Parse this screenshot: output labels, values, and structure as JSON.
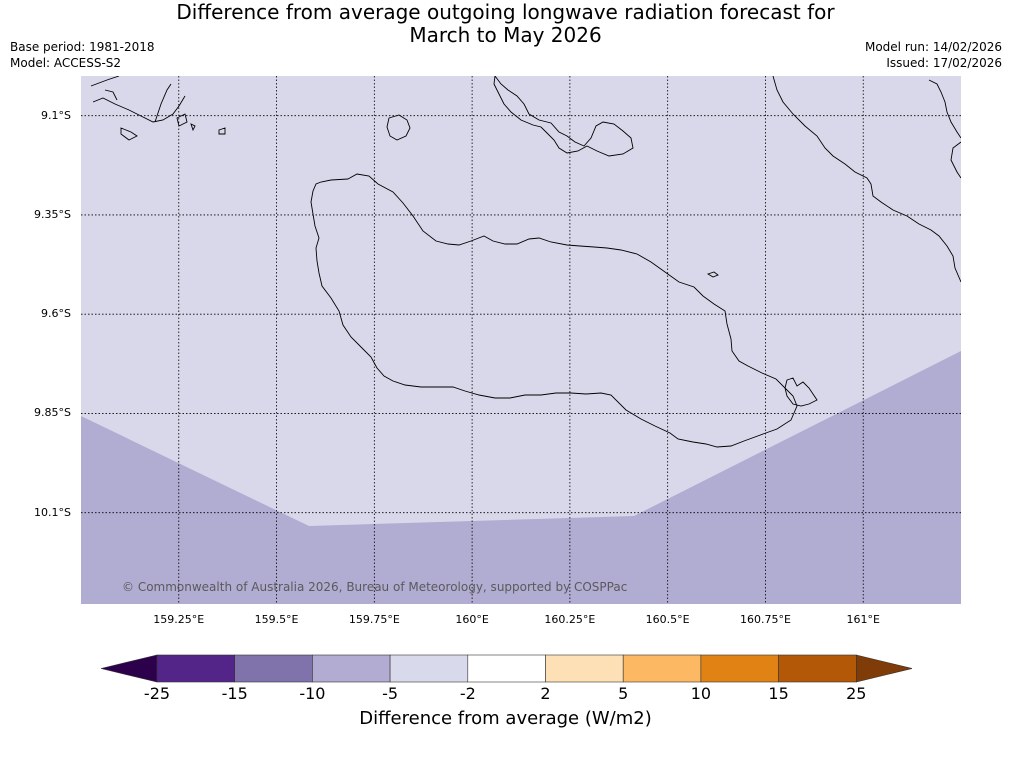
{
  "header": {
    "title_line1": "Difference from average outgoing longwave radiation forecast for",
    "title_line2": "March to May 2026",
    "base_period": "Base period: 1981-2018",
    "model": "Model: ACCESS-S2",
    "model_run": "Model run: 14/02/2026",
    "issued": "Issued: 17/02/2026"
  },
  "map": {
    "copyright": "© Commonwealth of Australia 2026, Bureau of Meteorology, supported by COSPPac",
    "lat_range": [
      -10.33,
      -9.0
    ],
    "lon_range": [
      159.0,
      161.25
    ],
    "lat_ticks": [
      {
        "value": -9.1,
        "label": "9.1°S"
      },
      {
        "value": -9.35,
        "label": "9.35°S"
      },
      {
        "value": -9.6,
        "label": "9.6°S"
      },
      {
        "value": -9.85,
        "label": "9.85°S"
      },
      {
        "value": -10.1,
        "label": "10.1°S"
      }
    ],
    "lon_ticks": [
      {
        "value": 159.25,
        "label": "159.25°E"
      },
      {
        "value": 159.5,
        "label": "159.5°E"
      },
      {
        "value": 159.75,
        "label": "159.75°E"
      },
      {
        "value": 160.0,
        "label": "160°E"
      },
      {
        "value": 160.25,
        "label": "160.25°E"
      },
      {
        "value": 160.5,
        "label": "160.5°E"
      },
      {
        "value": 160.75,
        "label": "160.75°E"
      },
      {
        "value": 161.0,
        "label": "161°E"
      }
    ],
    "fill_colors": {
      "light_region": "#d8d8ea",
      "dark_region": "#b1acd2"
    }
  },
  "colorbar": {
    "title": "Difference from average (W/m2)",
    "bins": [
      {
        "from": -25,
        "to": -15,
        "color": "#542589"
      },
      {
        "from": -15,
        "to": -10,
        "color": "#8073ac"
      },
      {
        "from": -10,
        "to": -5,
        "color": "#b2abd2"
      },
      {
        "from": -5,
        "to": -2,
        "color": "#d8daeb"
      },
      {
        "from": -2,
        "to": 2,
        "color": "#ffffff"
      },
      {
        "from": 2,
        "to": 5,
        "color": "#fee0b6"
      },
      {
        "from": 5,
        "to": 10,
        "color": "#fdb863"
      },
      {
        "from": 10,
        "to": 15,
        "color": "#e08214"
      },
      {
        "from": 15,
        "to": 25,
        "color": "#b35806"
      }
    ],
    "under_color": "#2d004b",
    "over_color": "#7f3b08",
    "tick_labels": [
      "-25",
      "-15",
      "-10",
      "-5",
      "-2",
      "2",
      "5",
      "10",
      "15",
      "25"
    ]
  }
}
